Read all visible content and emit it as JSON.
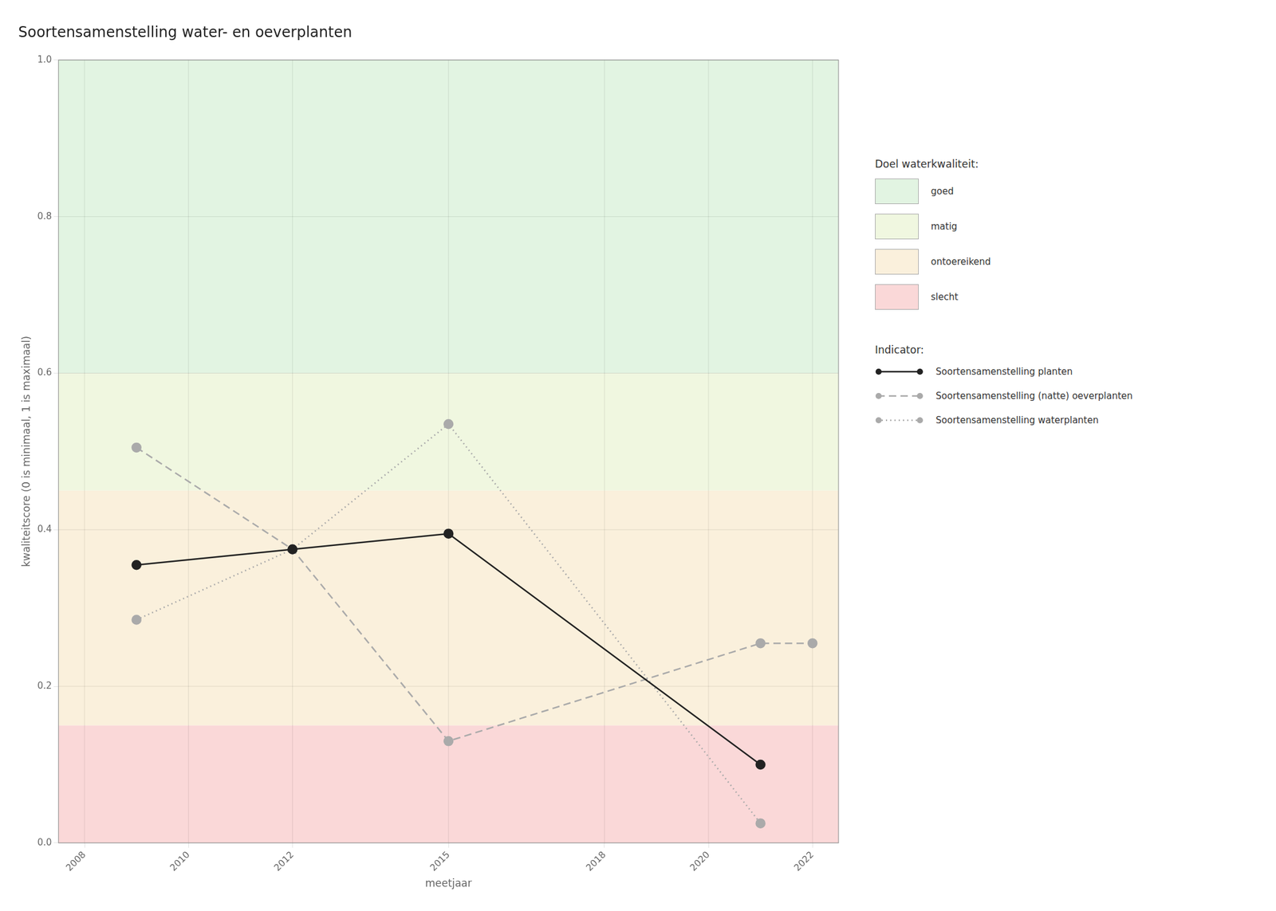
{
  "chart_data": {
    "type": "line",
    "title": "Soortensamenstelling water- en oeverplanten",
    "x_label": "meetjaar",
    "y_label": "kwaliteitscore (0 is minimaal, 1 is maximaal)",
    "xlim": [
      2007.5,
      2022.5
    ],
    "ylim": [
      0.0,
      1.0
    ],
    "xticks": [
      2008,
      2010,
      2012,
      2015,
      2018,
      2020,
      2022
    ],
    "yticks": [
      {
        "value": 0.0,
        "label": "0.0"
      },
      0.2,
      0.4,
      0.6,
      0.8,
      {
        "value": 1.0,
        "label": "1.0"
      }
    ],
    "grid": true,
    "legend": "right",
    "zones_title": "Doel waterkwaliteit:",
    "zones": [
      {
        "name": "goed",
        "ymin": 0.6,
        "ymax": 1.0,
        "color": "#e2f4e2"
      },
      {
        "name": "matig",
        "ymin": 0.45,
        "ymax": 0.6,
        "color": "#f0f7e0"
      },
      {
        "name": "ontoereikend",
        "ymin": 0.15,
        "ymax": 0.45,
        "color": "#faf0dc"
      },
      {
        "name": "slecht",
        "ymin": 0.0,
        "ymax": 0.15,
        "color": "#fad8d8"
      }
    ],
    "series_title": "Indicator:",
    "series": [
      {
        "name": "Soortensamenstelling planten",
        "color": "#222222",
        "line_style": "solid",
        "marker": "circle",
        "x": [
          2009,
          2012,
          2015,
          2021
        ],
        "values": [
          0.355,
          0.375,
          0.395,
          0.1
        ]
      },
      {
        "name": "Soortensamenstelling (natte) oeverplanten",
        "color": "#aaaaaa",
        "line_style": "dashed",
        "marker": "circle",
        "x": [
          2009,
          2012,
          2015,
          2021,
          2022
        ],
        "values": [
          0.505,
          0.375,
          0.13,
          0.255,
          0.255
        ]
      },
      {
        "name": "Soortensamenstelling waterplanten",
        "color": "#aaaaaa",
        "line_style": "dotted",
        "marker": "circle",
        "x": [
          2009,
          2012,
          2015,
          2021
        ],
        "values": [
          0.285,
          0.375,
          0.535,
          0.025
        ]
      }
    ]
  }
}
